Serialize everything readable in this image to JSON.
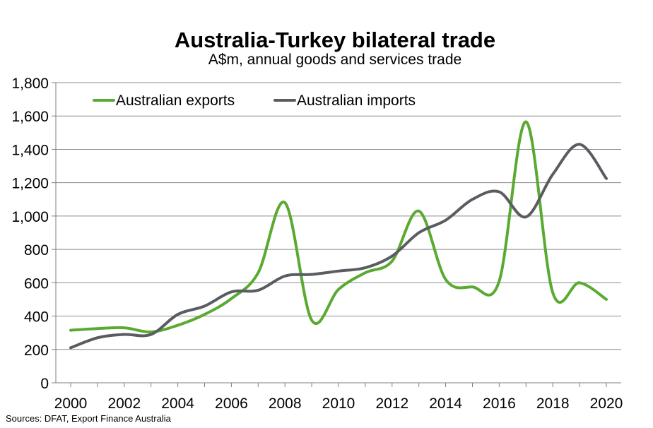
{
  "chart_data": {
    "type": "line",
    "title": "Australia-Turkey bilateral trade",
    "subtitle": "A$m, annual goods and services trade",
    "source": "Sources: DFAT, Export Finance Australia",
    "ylim": [
      0,
      1800
    ],
    "yticks": [
      0,
      200,
      400,
      600,
      800,
      1000,
      1200,
      1400,
      1600,
      1800
    ],
    "ytick_labels": [
      "0",
      "200",
      "400",
      "600",
      "800",
      "1,000",
      "1,200",
      "1,400",
      "1,600",
      "1,800"
    ],
    "xlim": [
      2000,
      2020
    ],
    "xticks": [
      2000,
      2002,
      2004,
      2006,
      2008,
      2010,
      2012,
      2014,
      2016,
      2018,
      2020
    ],
    "xtick_labels": [
      "2000",
      "2002",
      "2004",
      "2006",
      "2008",
      "2010",
      "2012",
      "2014",
      "2016",
      "2018",
      "2020"
    ],
    "grid": true,
    "legend_position": "top-left",
    "series": [
      {
        "name": "Australian exports",
        "color": "#5aaa32",
        "x": [
          2000,
          2001,
          2002,
          2003,
          2004,
          2005,
          2006,
          2007,
          2008,
          2009,
          2010,
          2011,
          2012,
          2013,
          2014,
          2015,
          2016,
          2017,
          2018,
          2019,
          2020
        ],
        "values": [
          315,
          325,
          330,
          305,
          345,
          410,
          505,
          660,
          1080,
          375,
          560,
          660,
          730,
          1030,
          620,
          575,
          610,
          1565,
          540,
          600,
          500
        ]
      },
      {
        "name": "Australian imports",
        "color": "#595c60",
        "x": [
          2000,
          2001,
          2002,
          2003,
          2004,
          2005,
          2006,
          2007,
          2008,
          2009,
          2010,
          2011,
          2012,
          2013,
          2014,
          2015,
          2016,
          2017,
          2018,
          2019,
          2020
        ],
        "values": [
          210,
          270,
          290,
          290,
          410,
          460,
          545,
          555,
          640,
          650,
          670,
          690,
          760,
          900,
          975,
          1100,
          1145,
          995,
          1250,
          1430,
          1225
        ]
      }
    ]
  }
}
